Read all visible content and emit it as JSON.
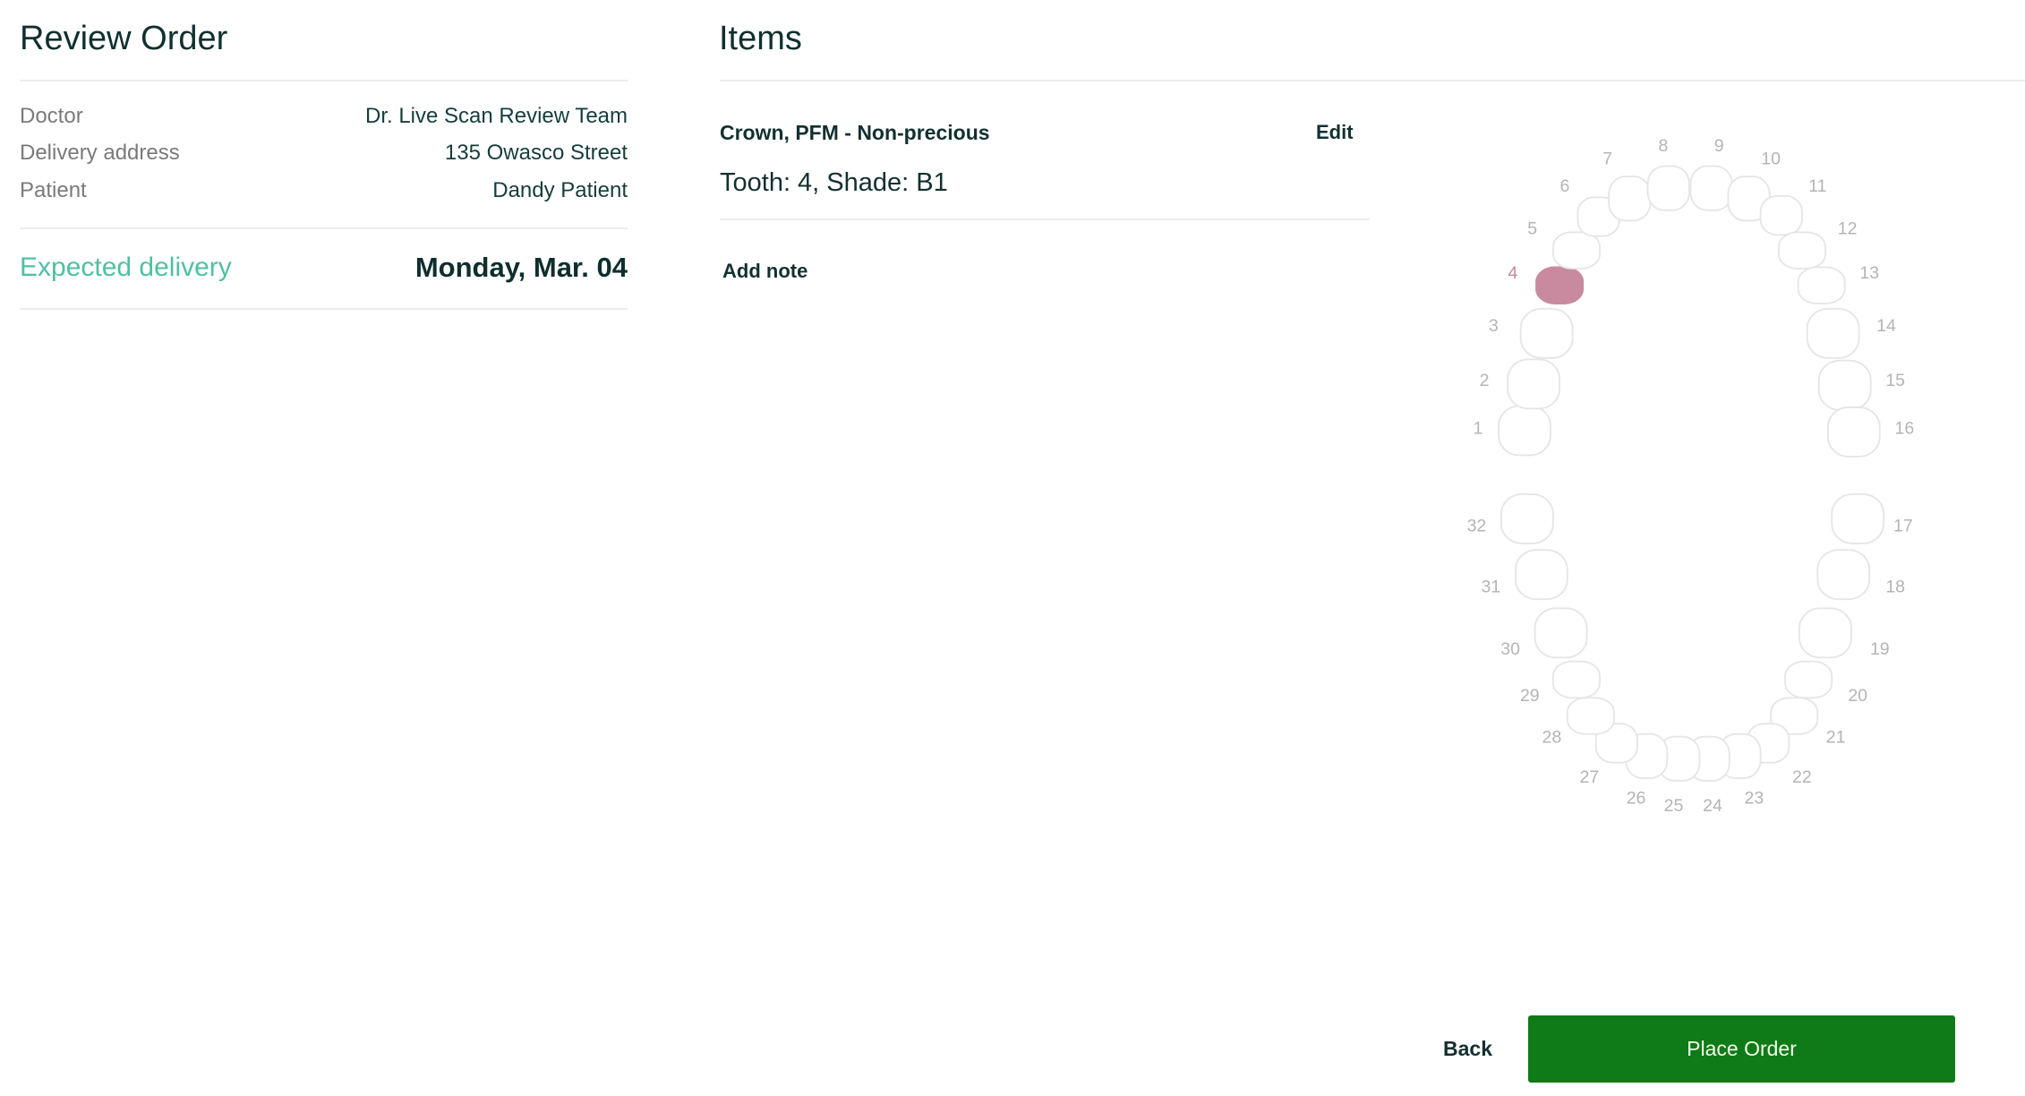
{
  "review": {
    "title": "Review Order",
    "rows": [
      {
        "label": "Doctor",
        "value": "Dr. Live Scan Review Team"
      },
      {
        "label": "Delivery address",
        "value": "135 Owasco Street"
      },
      {
        "label": "Patient",
        "value": "Dandy Patient"
      }
    ],
    "expected_label": "Expected delivery",
    "expected_value": "Monday, Mar. 04"
  },
  "items": {
    "title": "Items",
    "item_name": "Crown, PFM - Non-precious",
    "edit_label": "Edit",
    "details": "Tooth: 4, Shade: B1",
    "add_note_label": "Add note"
  },
  "tooth_chart": {
    "teeth": [
      1,
      2,
      3,
      4,
      5,
      6,
      7,
      8,
      9,
      10,
      11,
      12,
      13,
      14,
      15,
      16,
      17,
      18,
      19,
      20,
      21,
      22,
      23,
      24,
      25,
      26,
      27,
      28,
      29,
      30,
      31,
      32
    ],
    "selected": [
      4
    ],
    "selected_color": "#c98a9f",
    "outline_color": "#e6e6e6"
  },
  "actions": {
    "back_label": "Back",
    "place_order_label": "Place Order",
    "primary_color": "#0f7a18"
  }
}
